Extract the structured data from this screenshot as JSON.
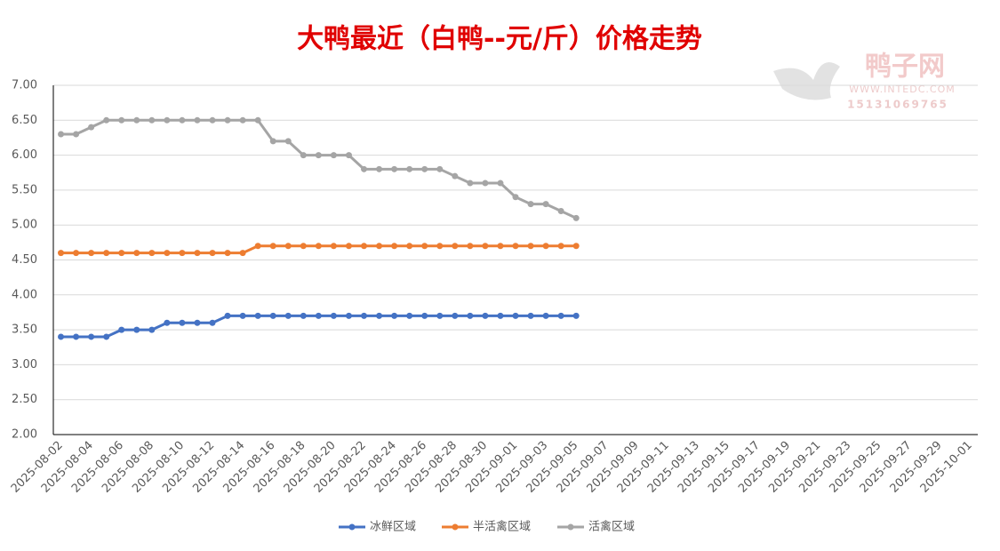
{
  "chart_data": {
    "type": "line",
    "title": "大鸭最近（白鸭--元/斤）价格走势",
    "watermark": {
      "name": "鸭子网",
      "site": "WWW.INTEDC.COM",
      "phone": "15131069765"
    },
    "categories": [
      "2025-08-02",
      null,
      "2025-08-04",
      null,
      "2025-08-06",
      null,
      "2025-08-08",
      null,
      "2025-08-10",
      null,
      "2025-08-12",
      null,
      "2025-08-14",
      null,
      "2025-08-16",
      null,
      "2025-08-18",
      null,
      "2025-08-20",
      null,
      "2025-08-22",
      null,
      "2025-08-24",
      null,
      "2025-08-26",
      null,
      "2025-08-28",
      null,
      "2025-08-30",
      null,
      "2025-09-01",
      null,
      "2025-09-03",
      null,
      "2025-09-05",
      null,
      "2025-09-07",
      null,
      "2025-09-09",
      null,
      "2025-09-11",
      null,
      "2025-09-13",
      null,
      "2025-09-15",
      null,
      "2025-09-17",
      null,
      "2025-09-19",
      null,
      "2025-09-21",
      null,
      "2025-09-23",
      null,
      "2025-09-25",
      null,
      "2025-09-27",
      null,
      "2025-09-29",
      null,
      "2025-10-01"
    ],
    "series": [
      {
        "name": "冰鲜区域",
        "color": "#4472c4",
        "values": [
          3.4,
          3.4,
          3.4,
          3.4,
          3.5,
          3.5,
          3.5,
          3.6,
          3.6,
          3.6,
          3.6,
          3.7,
          3.7,
          3.7,
          3.7,
          3.7,
          3.7,
          3.7,
          3.7,
          3.7,
          3.7,
          3.7,
          3.7,
          3.7,
          3.7,
          3.7,
          3.7,
          3.7,
          3.7,
          3.7,
          3.7,
          3.7,
          3.7,
          3.7,
          3.7,
          null,
          null,
          null,
          null,
          null,
          null,
          null,
          null,
          null,
          null,
          null,
          null,
          null,
          null,
          null,
          null,
          null,
          null,
          null,
          null,
          null,
          null,
          null,
          null,
          null,
          null
        ]
      },
      {
        "name": "半活禽区域",
        "color": "#ed7d31",
        "values": [
          4.6,
          4.6,
          4.6,
          4.6,
          4.6,
          4.6,
          4.6,
          4.6,
          4.6,
          4.6,
          4.6,
          4.6,
          4.6,
          4.7,
          4.7,
          4.7,
          4.7,
          4.7,
          4.7,
          4.7,
          4.7,
          4.7,
          4.7,
          4.7,
          4.7,
          4.7,
          4.7,
          4.7,
          4.7,
          4.7,
          4.7,
          4.7,
          4.7,
          4.7,
          4.7,
          null,
          null,
          null,
          null,
          null,
          null,
          null,
          null,
          null,
          null,
          null,
          null,
          null,
          null,
          null,
          null,
          null,
          null,
          null,
          null,
          null,
          null,
          null,
          null,
          null,
          null
        ]
      },
      {
        "name": "活禽区域",
        "color": "#a5a5a5",
        "values": [
          6.3,
          6.3,
          6.4,
          6.5,
          6.5,
          6.5,
          6.5,
          6.5,
          6.5,
          6.5,
          6.5,
          6.5,
          6.5,
          6.5,
          6.2,
          6.2,
          6.0,
          6.0,
          6.0,
          6.0,
          5.8,
          5.8,
          5.8,
          5.8,
          5.8,
          5.8,
          5.7,
          5.6,
          5.6,
          5.6,
          5.4,
          5.3,
          5.3,
          5.2,
          5.1,
          null,
          null,
          null,
          null,
          null,
          null,
          null,
          null,
          null,
          null,
          null,
          null,
          null,
          null,
          null,
          null,
          null,
          null,
          null,
          null,
          null,
          null,
          null,
          null,
          null,
          null
        ]
      }
    ],
    "ylim": [
      2,
      7
    ],
    "yticks": [
      {
        "value": 2,
        "label": "2.00"
      },
      {
        "value": 2.5,
        "label": "2.50"
      },
      {
        "value": 3,
        "label": "3.00"
      },
      {
        "value": 3.5,
        "label": "3.50"
      },
      {
        "value": 4,
        "label": "4.00"
      },
      {
        "value": 4.5,
        "label": "4.50"
      },
      {
        "value": 5,
        "label": "5.00"
      },
      {
        "value": 5.5,
        "label": "5.50"
      },
      {
        "value": 6,
        "label": "6.00"
      },
      {
        "value": 6.5,
        "label": "6.50"
      },
      {
        "value": 7,
        "label": "7.00"
      }
    ],
    "grid": true,
    "legend": "bottom"
  }
}
